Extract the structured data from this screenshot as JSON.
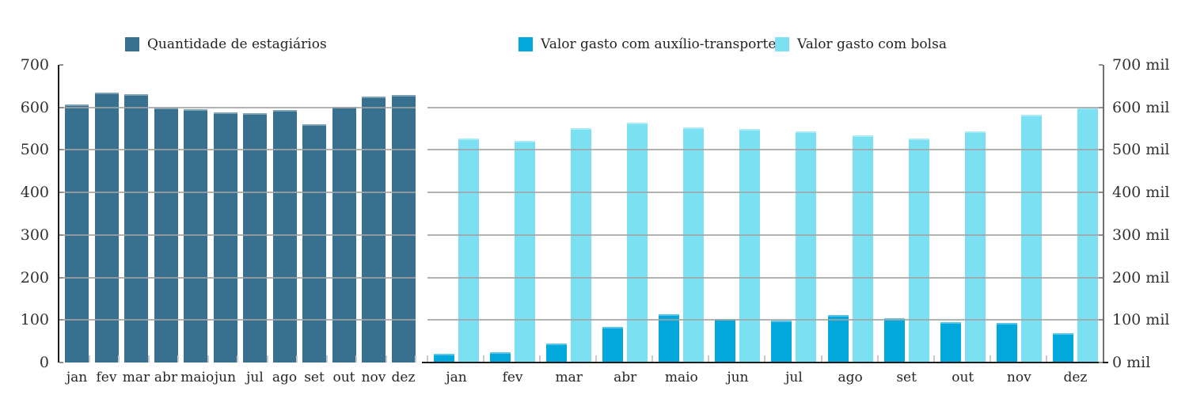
{
  "chart_data": [
    {
      "type": "bar",
      "title": "",
      "categories": [
        "jan",
        "fev",
        "mar",
        "abr",
        "maio",
        "jun",
        "jul",
        "ago",
        "set",
        "out",
        "nov",
        "dez"
      ],
      "series": [
        {
          "name": "Quantidade de estagiários",
          "color": "#38708F",
          "values": [
            607,
            635,
            632,
            600,
            595,
            588,
            587,
            593,
            561,
            601,
            625,
            629
          ]
        }
      ],
      "ylim": [
        0,
        700
      ],
      "y_ticks": [
        0,
        100,
        200,
        300,
        400,
        500,
        600,
        700
      ],
      "y_tick_suffix": "",
      "y_axis_side": "left",
      "grid": true,
      "legend_position": "top"
    },
    {
      "type": "bar",
      "title": "",
      "categories": [
        "jan",
        "fev",
        "mar",
        "abr",
        "maio",
        "jun",
        "jul",
        "ago",
        "set",
        "out",
        "nov",
        "dez"
      ],
      "series": [
        {
          "name": "Valor gasto com auxílio-transporte",
          "color": "#00A8DC",
          "values": [
            20,
            24,
            45,
            84,
            113,
            102,
            98,
            111,
            104,
            95,
            93,
            68
          ]
        },
        {
          "name": "Valor gasto com bolsa",
          "color": "#7BE0F2",
          "values": [
            527,
            522,
            552,
            565,
            553,
            550,
            543,
            535,
            527,
            543,
            583,
            600
          ]
        }
      ],
      "ylim": [
        0,
        700
      ],
      "y_ticks": [
        0,
        100,
        200,
        300,
        400,
        500,
        600,
        700
      ],
      "y_tick_suffix": " mil",
      "y_axis_side": "right",
      "grid": true,
      "legend_position": "top"
    }
  ]
}
